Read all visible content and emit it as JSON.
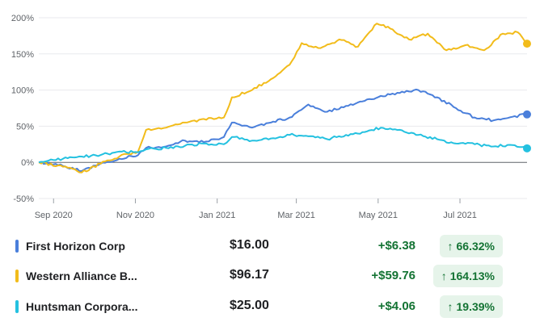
{
  "chart_data": {
    "type": "line",
    "title": "",
    "xlabel": "",
    "ylabel": "",
    "ylim": [
      -50,
      200
    ],
    "yticks": [
      -50,
      0,
      50,
      100,
      150,
      200
    ],
    "ytick_labels": [
      "-50%",
      "0%",
      "50%",
      "100%",
      "150%",
      "200%"
    ],
    "x_range": [
      "2020-08-21",
      "2021-08-20"
    ],
    "xticks": [
      "2020-09-01",
      "2020-11-01",
      "2021-01-01",
      "2021-03-01",
      "2021-05-01",
      "2021-07-01"
    ],
    "xtick_labels": [
      "Sep 2020",
      "Nov 2020",
      "Jan 2021",
      "Mar 2021",
      "May 2021",
      "Jul 2021"
    ],
    "zero_line": true,
    "grid": "horizontal",
    "series": [
      {
        "name": "First Horizon Corp",
        "color": "#4a7fdb",
        "points": [
          [
            "2020-08-21",
            0
          ],
          [
            "2020-09-08",
            -5
          ],
          [
            "2020-09-22",
            -12
          ],
          [
            "2020-10-06",
            -2
          ],
          [
            "2020-10-20",
            5
          ],
          [
            "2020-11-03",
            10
          ],
          [
            "2020-11-09",
            20
          ],
          [
            "2020-11-24",
            22
          ],
          [
            "2020-12-08",
            30
          ],
          [
            "2020-12-22",
            28
          ],
          [
            "2021-01-06",
            35
          ],
          [
            "2021-01-12",
            55
          ],
          [
            "2021-01-27",
            48
          ],
          [
            "2021-02-10",
            55
          ],
          [
            "2021-02-24",
            62
          ],
          [
            "2021-03-10",
            80
          ],
          [
            "2021-03-24",
            70
          ],
          [
            "2021-04-07",
            78
          ],
          [
            "2021-04-21",
            85
          ],
          [
            "2021-05-03",
            92
          ],
          [
            "2021-05-17",
            96
          ],
          [
            "2021-05-31",
            100
          ],
          [
            "2021-06-14",
            90
          ],
          [
            "2021-06-28",
            75
          ],
          [
            "2021-07-12",
            62
          ],
          [
            "2021-07-26",
            58
          ],
          [
            "2021-08-09",
            63
          ],
          [
            "2021-08-20",
            66.32
          ]
        ]
      },
      {
        "name": "Western Alliance B...",
        "color": "#f2bc1b",
        "points": [
          [
            "2020-08-21",
            0
          ],
          [
            "2020-09-08",
            -6
          ],
          [
            "2020-09-22",
            -14
          ],
          [
            "2020-10-06",
            -2
          ],
          [
            "2020-10-20",
            8
          ],
          [
            "2020-11-03",
            15
          ],
          [
            "2020-11-09",
            45
          ],
          [
            "2020-11-24",
            48
          ],
          [
            "2020-12-08",
            55
          ],
          [
            "2020-12-22",
            60
          ],
          [
            "2021-01-06",
            62
          ],
          [
            "2021-01-12",
            90
          ],
          [
            "2021-01-27",
            100
          ],
          [
            "2021-02-10",
            115
          ],
          [
            "2021-02-24",
            135
          ],
          [
            "2021-03-05",
            165
          ],
          [
            "2021-03-19",
            158
          ],
          [
            "2021-04-02",
            170
          ],
          [
            "2021-04-16",
            160
          ],
          [
            "2021-04-30",
            192
          ],
          [
            "2021-05-10",
            185
          ],
          [
            "2021-05-24",
            170
          ],
          [
            "2021-06-07",
            178
          ],
          [
            "2021-06-21",
            155
          ],
          [
            "2021-07-05",
            162
          ],
          [
            "2021-07-19",
            155
          ],
          [
            "2021-08-02",
            178
          ],
          [
            "2021-08-13",
            180
          ],
          [
            "2021-08-20",
            164.13
          ]
        ]
      },
      {
        "name": "Huntsman Corpora...",
        "color": "#24c1e0",
        "points": [
          [
            "2020-08-21",
            0
          ],
          [
            "2020-09-08",
            5
          ],
          [
            "2020-09-22",
            8
          ],
          [
            "2020-10-06",
            10
          ],
          [
            "2020-10-20",
            15
          ],
          [
            "2020-11-03",
            14
          ],
          [
            "2020-11-09",
            18
          ],
          [
            "2020-11-24",
            20
          ],
          [
            "2020-12-08",
            23
          ],
          [
            "2020-12-22",
            26
          ],
          [
            "2021-01-06",
            25
          ],
          [
            "2021-01-12",
            35
          ],
          [
            "2021-01-27",
            30
          ],
          [
            "2021-02-10",
            33
          ],
          [
            "2021-02-24",
            38
          ],
          [
            "2021-03-10",
            36
          ],
          [
            "2021-03-24",
            32
          ],
          [
            "2021-04-07",
            38
          ],
          [
            "2021-04-21",
            42
          ],
          [
            "2021-05-03",
            48
          ],
          [
            "2021-05-17",
            45
          ],
          [
            "2021-05-31",
            38
          ],
          [
            "2021-06-14",
            32
          ],
          [
            "2021-06-28",
            26
          ],
          [
            "2021-07-12",
            25
          ],
          [
            "2021-07-26",
            22
          ],
          [
            "2021-08-09",
            24
          ],
          [
            "2021-08-20",
            19.39
          ]
        ]
      }
    ]
  },
  "legend_rows": [
    {
      "name": "First Horizon Corp",
      "price": "$16.00",
      "change": "+$6.38",
      "pct": "66.32%",
      "color": "#4a7fdb"
    },
    {
      "name": "Western Alliance B...",
      "price": "$96.17",
      "change": "+$59.76",
      "pct": "164.13%",
      "color": "#f2bc1b"
    },
    {
      "name": "Huntsman Corpora...",
      "price": "$25.00",
      "change": "+$4.06",
      "pct": "19.39%",
      "color": "#24c1e0"
    }
  ],
  "icons": {
    "pct_arrow": "arrow-up-icon"
  }
}
